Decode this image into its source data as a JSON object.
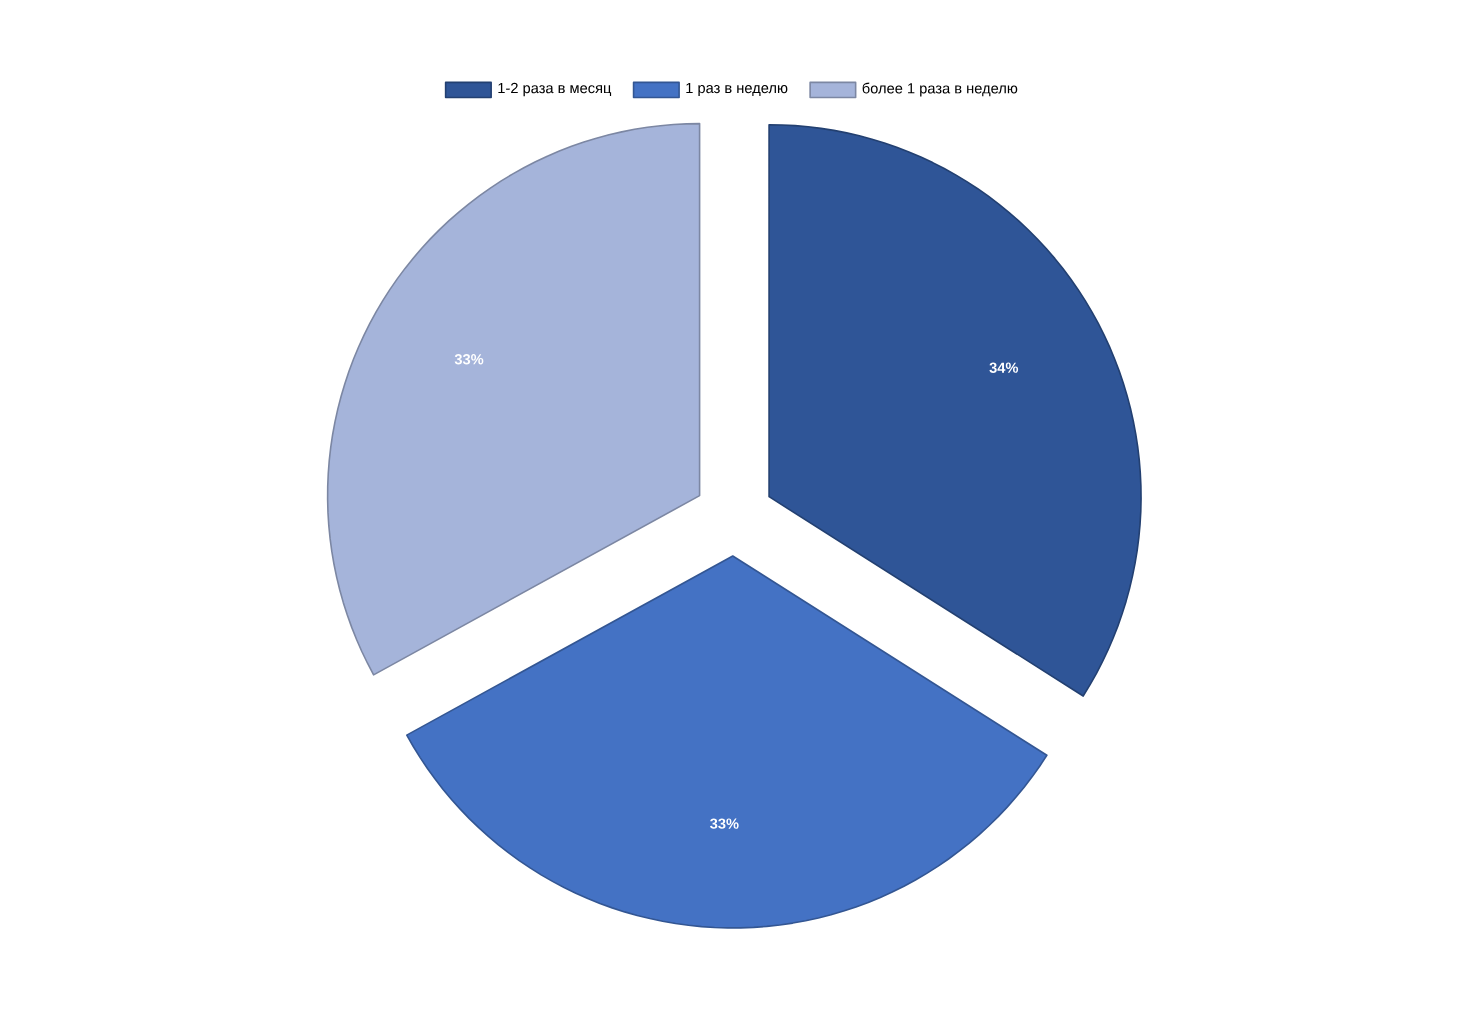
{
  "chart_data": {
    "type": "pie",
    "categories": [
      "1-2 раза в месяц",
      "1 раз в неделю",
      "более 1 раза в неделю"
    ],
    "values": [
      34,
      33,
      33
    ],
    "value_labels": [
      "34%",
      "33%",
      "33%"
    ],
    "colors": [
      "#2f5597",
      "#4472c4",
      "#a5b4da"
    ],
    "legend": "top"
  }
}
